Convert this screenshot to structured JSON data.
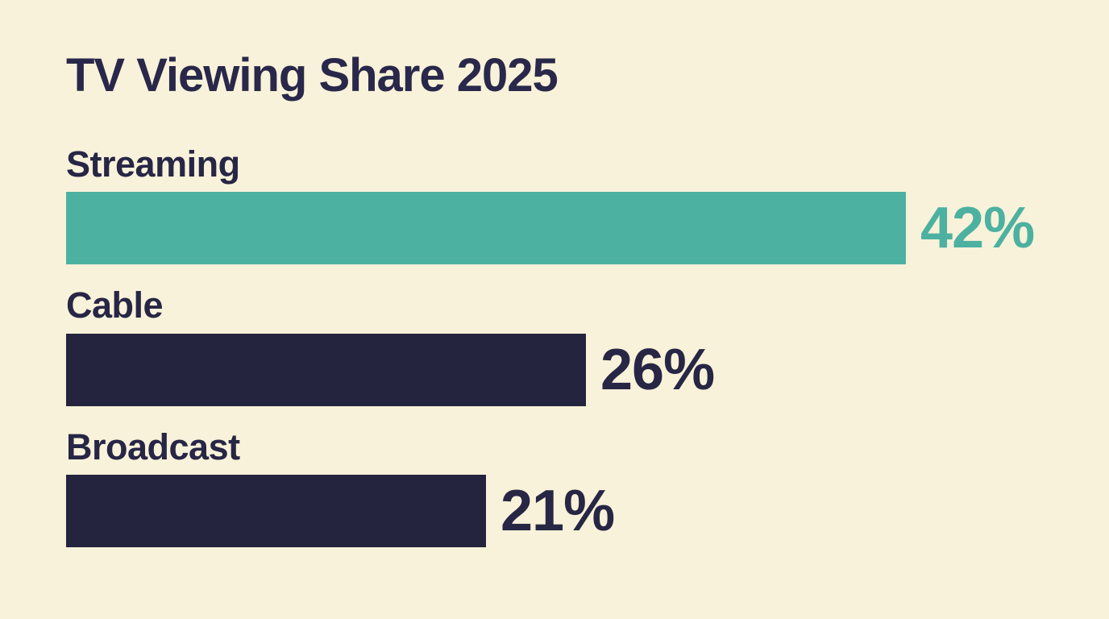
{
  "title": "TV Viewing Share 2025",
  "colors": {
    "background": "#f8f2da",
    "teal": "#4db1a1",
    "navy": "#24243e",
    "label_text": "#272645",
    "title_text": "#29284a"
  },
  "chart_data": {
    "type": "bar",
    "orientation": "horizontal",
    "title": "TV Viewing Share 2025",
    "categories": [
      "Streaming",
      "Cable",
      "Broadcast"
    ],
    "values": [
      42,
      26,
      21
    ],
    "unit": "%",
    "xlim": [
      0,
      45
    ],
    "grid": false,
    "legend": false,
    "axes_hidden": true,
    "bars": [
      {
        "label": "Streaming",
        "value": 42,
        "display": "42%",
        "bar_color": "#4db1a1",
        "value_color": "#4db1a1"
      },
      {
        "label": "Cable",
        "value": 26,
        "display": "26%",
        "bar_color": "#24243e",
        "value_color": "#272645"
      },
      {
        "label": "Broadcast",
        "value": 21,
        "display": "21%",
        "bar_color": "#24243e",
        "value_color": "#272645"
      }
    ]
  }
}
